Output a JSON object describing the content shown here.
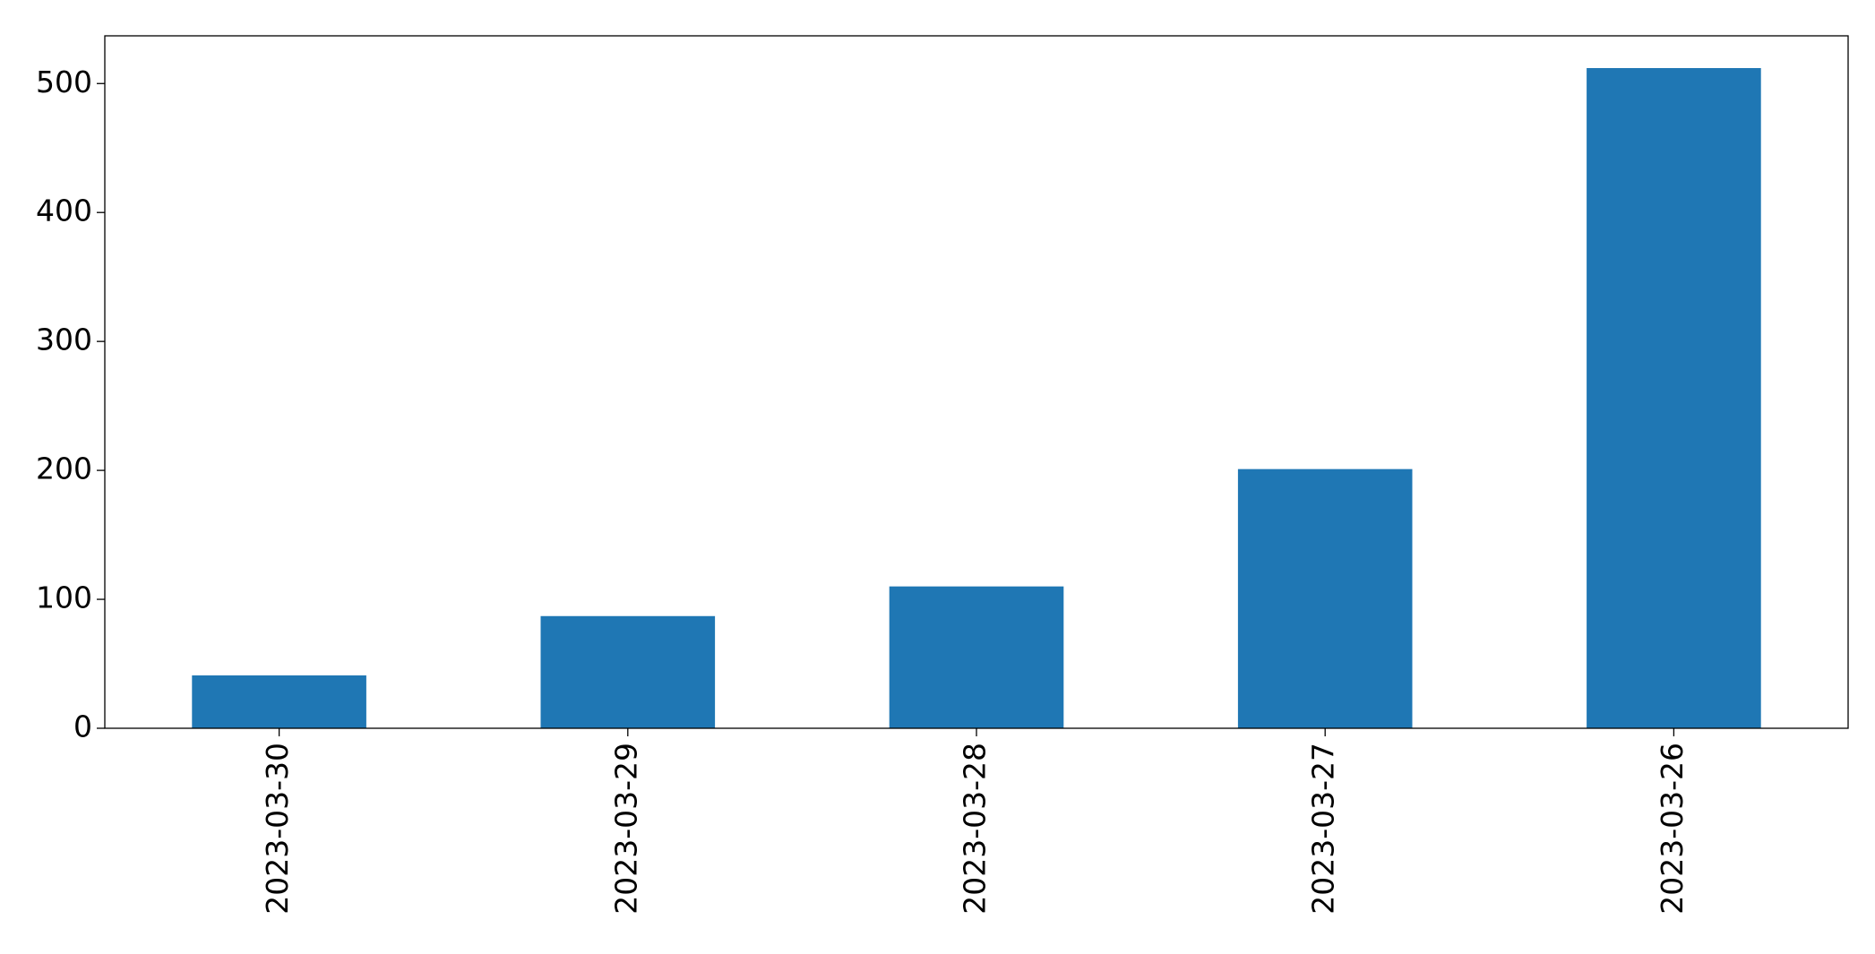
{
  "chart_data": {
    "type": "bar",
    "categories": [
      "2023-03-30",
      "2023-03-29",
      "2023-03-28",
      "2023-03-27",
      "2023-03-26"
    ],
    "values": [
      41,
      87,
      110,
      201,
      512
    ],
    "color": "#1f77b4",
    "ylim": [
      0,
      537
    ],
    "yticks": [
      0,
      100,
      200,
      300,
      400,
      500
    ],
    "grid": false
  }
}
